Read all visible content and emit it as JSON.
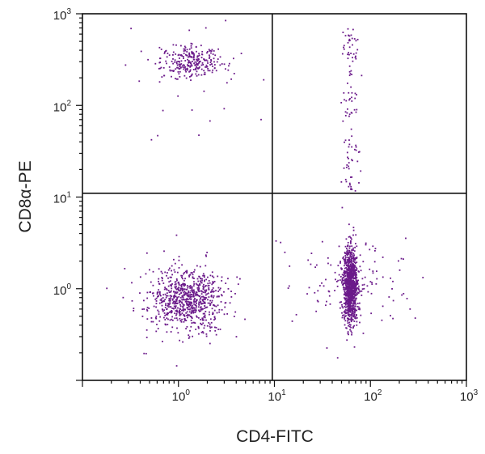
{
  "chart_data": {
    "type": "scatter",
    "xlabel": "CD4-FITC",
    "ylabel": "CD8α-PE",
    "x_scale": "log",
    "y_scale": "log",
    "xlim": [
      0.1,
      1000
    ],
    "ylim": [
      0.1,
      1000
    ],
    "x_ticks": [
      {
        "base": "10",
        "exp": "0",
        "value": 1
      },
      {
        "base": "10",
        "exp": "1",
        "value": 10
      },
      {
        "base": "10",
        "exp": "2",
        "value": 100
      },
      {
        "base": "10",
        "exp": "3",
        "value": 1000
      }
    ],
    "y_ticks": [
      {
        "base": "10",
        "exp": "0",
        "value": 1
      },
      {
        "base": "10",
        "exp": "1",
        "value": 10
      },
      {
        "base": "10",
        "exp": "2",
        "value": 100
      },
      {
        "base": "10",
        "exp": "3",
        "value": 1000
      }
    ],
    "quadrant_gate": {
      "x": 9.5,
      "y": 11
    },
    "point_color": "#6b1a8a",
    "grid": false,
    "populations": [
      {
        "quadrant": "upper-left",
        "center_x": 1.4,
        "center_y": 300,
        "point_count": 300
      },
      {
        "quadrant": "lower-left",
        "center_x": 1.2,
        "center_y": 0.75,
        "point_count": 800
      },
      {
        "quadrant": "lower-right",
        "center_x": 62,
        "center_y": 1.1,
        "point_count": 1200
      },
      {
        "quadrant": "upper-right",
        "center_x": 62,
        "center_y": 100,
        "point_count": 110
      }
    ]
  }
}
